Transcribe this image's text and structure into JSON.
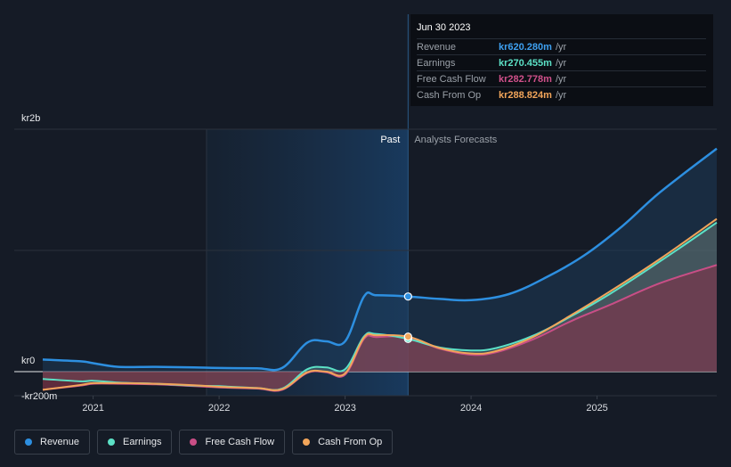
{
  "colors": {
    "revenue": "#2d8fe0",
    "earnings": "#5ce1c6",
    "free_cash_flow": "#c94e86",
    "cash_from_op": "#f2a55a",
    "background": "#151b26"
  },
  "tooltip": {
    "date": "Jun 30 2023",
    "rows": [
      {
        "label": "Revenue",
        "value": "kr620.280m",
        "unit": "/yr",
        "color": "#3ea0f0"
      },
      {
        "label": "Earnings",
        "value": "kr270.455m",
        "unit": "/yr",
        "color": "#5ce1c6"
      },
      {
        "label": "Free Cash Flow",
        "value": "kr282.778m",
        "unit": "/yr",
        "color": "#d0508a"
      },
      {
        "label": "Cash From Op",
        "value": "kr288.824m",
        "unit": "/yr",
        "color": "#f2a55a"
      }
    ]
  },
  "legend": [
    {
      "label": "Revenue",
      "icon": "revenue-dot",
      "color": "#2d8fe0"
    },
    {
      "label": "Earnings",
      "icon": "earnings-dot",
      "color": "#5ce1c6"
    },
    {
      "label": "Free Cash Flow",
      "icon": "free-cash-flow-dot",
      "color": "#c94e86"
    },
    {
      "label": "Cash From Op",
      "icon": "cash-from-op-dot",
      "color": "#f2a55a"
    }
  ],
  "chart_data": {
    "type": "line",
    "title": "",
    "ylabel": "",
    "xlabel": "",
    "y_tick_labels": [
      "kr2b",
      "kr0",
      "-kr200m"
    ],
    "y_ticks": [
      2000,
      0,
      -200
    ],
    "ylim": [
      -200,
      2000
    ],
    "xlim": [
      2020.6,
      2025.95
    ],
    "x_tick_labels": [
      "2021",
      "2022",
      "2023",
      "2024",
      "2025"
    ],
    "x_ticks": [
      2021,
      2022,
      2023,
      2024,
      2025
    ],
    "past_label": "Past",
    "forecast_label": "Analysts Forecasts",
    "past_region": [
      2021.9,
      2023.5
    ],
    "series": [
      {
        "name": "Revenue",
        "key": "revenue",
        "x": [
          2020.6,
          2020.9,
          2021.0,
          2021.2,
          2021.5,
          2021.8,
          2022.0,
          2022.3,
          2022.5,
          2022.7,
          2022.85,
          2023.0,
          2023.15,
          2023.25,
          2023.5,
          2023.75,
          2024.0,
          2024.3,
          2024.6,
          2024.9,
          2025.2,
          2025.5,
          2025.95
        ],
        "y": [
          100,
          85,
          70,
          40,
          40,
          35,
          30,
          28,
          30,
          240,
          250,
          250,
          620,
          630,
          620,
          600,
          590,
          640,
          780,
          960,
          1200,
          1480,
          1840
        ]
      },
      {
        "name": "Earnings",
        "key": "earnings",
        "x": [
          2020.6,
          2020.9,
          2021.0,
          2021.2,
          2021.5,
          2021.8,
          2022.0,
          2022.3,
          2022.5,
          2022.7,
          2022.85,
          2023.0,
          2023.15,
          2023.25,
          2023.5,
          2023.75,
          2024.0,
          2024.2,
          2024.5,
          2024.8,
          2025.1,
          2025.5,
          2025.95
        ],
        "y": [
          -60,
          -80,
          -75,
          -90,
          -100,
          -115,
          -120,
          -135,
          -140,
          20,
          35,
          20,
          290,
          310,
          270,
          200,
          175,
          195,
          300,
          460,
          640,
          910,
          1230
        ]
      },
      {
        "name": "Free Cash Flow",
        "key": "free_cash_flow",
        "x": [
          2020.6,
          2020.9,
          2021.0,
          2021.2,
          2021.5,
          2021.8,
          2022.0,
          2022.3,
          2022.5,
          2022.7,
          2022.85,
          2023.0,
          2023.15,
          2023.25,
          2023.5,
          2023.75,
          2024.0,
          2024.2,
          2024.5,
          2024.8,
          2025.1,
          2025.5,
          2025.95
        ],
        "y": [
          -150,
          -115,
          -100,
          -100,
          -105,
          -120,
          -130,
          -140,
          -150,
          -10,
          -5,
          -25,
          270,
          285,
          283,
          190,
          140,
          160,
          270,
          420,
          550,
          730,
          880
        ]
      },
      {
        "name": "Cash From Op",
        "key": "cash_from_op",
        "x": [
          2020.6,
          2020.9,
          2021.0,
          2021.2,
          2021.5,
          2021.8,
          2022.0,
          2022.3,
          2022.5,
          2022.7,
          2022.85,
          2023.0,
          2023.15,
          2023.25,
          2023.5,
          2023.75,
          2024.0,
          2024.2,
          2024.5,
          2024.8,
          2025.1,
          2025.5,
          2025.95
        ],
        "y": [
          -150,
          -110,
          -95,
          -95,
          -100,
          -112,
          -125,
          -135,
          -145,
          -5,
          0,
          -15,
          280,
          300,
          289,
          195,
          150,
          170,
          290,
          470,
          660,
          930,
          1260
        ]
      }
    ],
    "highlight_x": 2023.5
  }
}
